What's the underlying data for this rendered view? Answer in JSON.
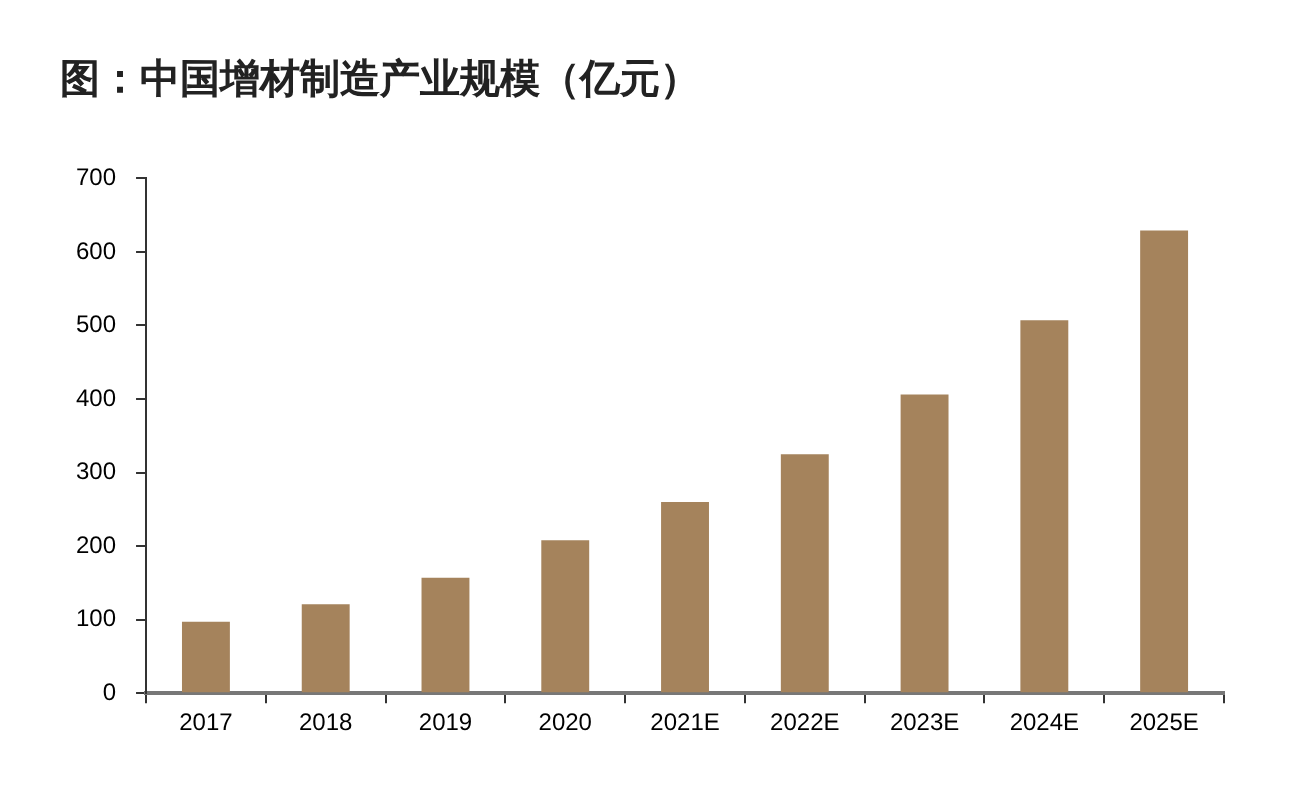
{
  "chart_data": {
    "type": "bar",
    "title": "图：中国增材制造产业规模（亿元）",
    "categories": [
      "2017",
      "2018",
      "2019",
      "2020",
      "2021E",
      "2022E",
      "2023E",
      "2024E",
      "2025E"
    ],
    "values": [
      97,
      121,
      157,
      208,
      260,
      325,
      406,
      507,
      629
    ],
    "color": "#a5835c",
    "ylim": [
      0,
      700
    ],
    "yticks": [
      0,
      100,
      200,
      300,
      400,
      500,
      600,
      700
    ],
    "grid": false,
    "legend": false
  }
}
